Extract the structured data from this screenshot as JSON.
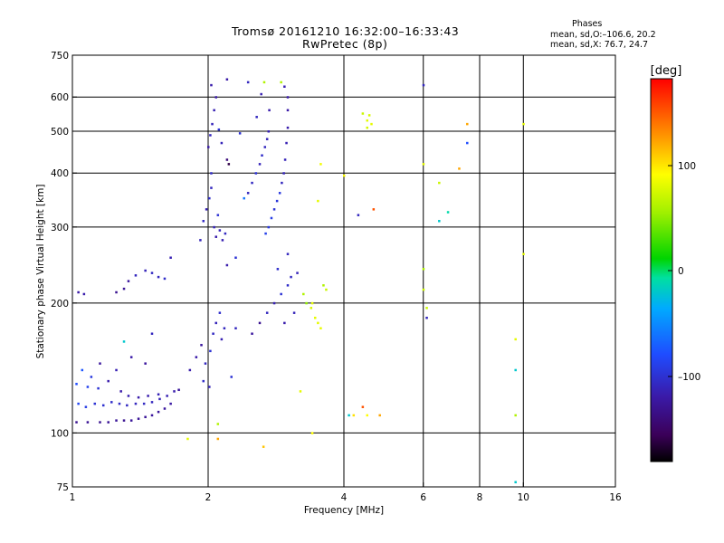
{
  "header": {
    "title_line1": "Tromsø 20161210 16:32:00–16:33:43",
    "title_line2": "RwPretec (8p)"
  },
  "phases": {
    "heading": "Phases",
    "line_o": "mean, sd,O:–106.6, 20.2",
    "line_x": "mean, sd,X: 76.7, 24.7"
  },
  "colorbar": {
    "unit": "[deg]",
    "ticks": [
      "100",
      "0",
      "–100"
    ]
  },
  "chart_data": {
    "type": "scatter",
    "xlabel": "Frequency [MHz]",
    "ylabel": "Stationary phase Virtual Height [km]",
    "x_scale": "log",
    "y_scale": "log",
    "xlim": [
      1,
      16
    ],
    "ylim": [
      75,
      750
    ],
    "x_tick_labels": [
      "1",
      "2",
      "4",
      "6",
      "8",
      "10",
      "16"
    ],
    "x_tick_values": [
      1,
      2,
      4,
      6,
      8,
      10,
      16
    ],
    "y_tick_labels": [
      "75",
      "100",
      "200",
      "300",
      "400",
      "500",
      "600",
      "750"
    ],
    "y_tick_values": [
      75,
      100,
      200,
      300,
      400,
      500,
      600,
      750
    ],
    "grid_x": [
      2,
      4,
      6,
      8,
      10
    ],
    "grid_y": [
      100,
      200,
      300,
      400,
      500,
      600
    ],
    "colorbar_range_deg": [
      -180,
      180
    ],
    "series": [
      {
        "points": [
          [
            1.02,
            106,
            -130
          ],
          [
            1.08,
            106,
            -128
          ],
          [
            1.15,
            106,
            -130
          ],
          [
            1.2,
            106,
            -128
          ],
          [
            1.25,
            107,
            -127
          ],
          [
            1.3,
            107,
            -130
          ],
          [
            1.35,
            107,
            -126
          ],
          [
            1.4,
            108,
            -128
          ],
          [
            1.45,
            109,
            -127
          ],
          [
            1.5,
            110,
            -125
          ],
          [
            1.55,
            112,
            -126
          ],
          [
            1.6,
            114,
            -124
          ],
          [
            1.65,
            117,
            -122
          ],
          [
            1.03,
            117,
            -85
          ],
          [
            1.07,
            115,
            -92
          ],
          [
            1.12,
            117,
            -100
          ],
          [
            1.17,
            116,
            -102
          ],
          [
            1.22,
            118,
            -105
          ],
          [
            1.27,
            117,
            -106
          ],
          [
            1.32,
            116,
            -108
          ],
          [
            1.38,
            117,
            -110
          ],
          [
            1.44,
            117,
            -108
          ],
          [
            1.5,
            118,
            -110
          ],
          [
            1.56,
            120,
            -112
          ],
          [
            1.62,
            122,
            -115
          ],
          [
            1.02,
            130,
            -80
          ],
          [
            1.05,
            140,
            -75
          ],
          [
            1.08,
            128,
            -88
          ],
          [
            1.1,
            135,
            -95
          ],
          [
            1.14,
            127,
            -100
          ],
          [
            1.2,
            132,
            -118
          ],
          [
            1.28,
            125,
            -120
          ],
          [
            1.33,
            122,
            -116
          ],
          [
            1.4,
            121,
            -119
          ],
          [
            1.47,
            122,
            -118
          ],
          [
            1.55,
            123,
            -114
          ],
          [
            1.68,
            125,
            -118
          ],
          [
            1.72,
            126,
            -126
          ],
          [
            1.03,
            212,
            -120
          ],
          [
            1.06,
            210,
            -118
          ],
          [
            1.25,
            212,
            -130
          ],
          [
            1.3,
            216,
            -128
          ],
          [
            1.33,
            225,
            -125
          ],
          [
            1.38,
            232,
            -110
          ],
          [
            1.45,
            238,
            -112
          ],
          [
            1.5,
            235,
            -108
          ],
          [
            1.55,
            230,
            -110
          ],
          [
            1.6,
            228,
            -105
          ],
          [
            1.65,
            255,
            -115
          ],
          [
            1.82,
            140,
            -118
          ],
          [
            1.88,
            150,
            -120
          ],
          [
            1.93,
            160,
            -125
          ],
          [
            1.97,
            145,
            -110
          ],
          [
            2.02,
            155,
            -100
          ],
          [
            2.05,
            170,
            -108
          ],
          [
            2.08,
            180,
            -112
          ],
          [
            2.12,
            190,
            -104
          ],
          [
            2.14,
            165,
            -115
          ],
          [
            2.17,
            175,
            -110
          ],
          [
            1.95,
            132,
            -106
          ],
          [
            2.01,
            128,
            -112
          ],
          [
            1.92,
            280,
            -112
          ],
          [
            1.95,
            310,
            -108
          ],
          [
            1.98,
            330,
            -115
          ],
          [
            2.01,
            350,
            -105
          ],
          [
            2.03,
            370,
            -110
          ],
          [
            2.06,
            300,
            -112
          ],
          [
            2.08,
            285,
            -118
          ],
          [
            2.1,
            320,
            -100
          ],
          [
            2.12,
            295,
            -112
          ],
          [
            2.15,
            280,
            -115
          ],
          [
            2.18,
            290,
            -108
          ],
          [
            2.03,
            400,
            -106
          ],
          [
            2.0,
            460,
            -120
          ],
          [
            2.02,
            490,
            -110
          ],
          [
            2.04,
            520,
            -112
          ],
          [
            2.06,
            560,
            -115
          ],
          [
            2.08,
            600,
            -120
          ],
          [
            2.03,
            640,
            -118
          ],
          [
            2.11,
            505,
            -100
          ],
          [
            2.14,
            470,
            -112
          ],
          [
            2.2,
            430,
            -140
          ],
          [
            2.22,
            420,
            -160
          ],
          [
            2.45,
            360,
            -110
          ],
          [
            2.5,
            380,
            -108
          ],
          [
            2.55,
            400,
            -100
          ],
          [
            2.6,
            420,
            -112
          ],
          [
            2.63,
            440,
            -105
          ],
          [
            2.67,
            460,
            -110
          ],
          [
            2.7,
            480,
            -112
          ],
          [
            2.72,
            500,
            -115
          ],
          [
            2.56,
            540,
            -110
          ],
          [
            2.62,
            610,
            -115
          ],
          [
            2.66,
            650,
            60
          ],
          [
            2.73,
            560,
            -118
          ],
          [
            2.68,
            290,
            -90
          ],
          [
            2.72,
            300,
            -95
          ],
          [
            2.76,
            315,
            -92
          ],
          [
            2.8,
            330,
            -100
          ],
          [
            2.84,
            345,
            -98
          ],
          [
            2.88,
            360,
            -95
          ],
          [
            2.91,
            380,
            -110
          ],
          [
            2.94,
            400,
            -112
          ],
          [
            2.96,
            430,
            -112
          ],
          [
            2.98,
            470,
            -115
          ],
          [
            3.0,
            510,
            -118
          ],
          [
            3.0,
            560,
            -120
          ],
          [
            3.0,
            600,
            -120
          ],
          [
            2.95,
            635,
            -115
          ],
          [
            2.9,
            650,
            60
          ],
          [
            2.5,
            170,
            -125
          ],
          [
            2.6,
            180,
            -130
          ],
          [
            2.7,
            190,
            -110
          ],
          [
            2.8,
            200,
            -115
          ],
          [
            2.9,
            210,
            -100
          ],
          [
            3.0,
            220,
            -105
          ],
          [
            3.05,
            230,
            -108
          ],
          [
            3.1,
            190,
            -112
          ],
          [
            2.95,
            180,
            -118
          ],
          [
            2.85,
            240,
            -104
          ],
          [
            3.0,
            260,
            -110
          ],
          [
            3.15,
            235,
            -112
          ],
          [
            3.25,
            210,
            60
          ],
          [
            3.3,
            200,
            50
          ],
          [
            3.38,
            195,
            75
          ],
          [
            3.45,
            185,
            80
          ],
          [
            3.5,
            180,
            80
          ],
          [
            3.55,
            175,
            82
          ],
          [
            3.6,
            220,
            60
          ],
          [
            3.65,
            215,
            70
          ],
          [
            3.4,
            200,
            80
          ],
          [
            3.5,
            345,
            80
          ],
          [
            3.55,
            420,
            85
          ],
          [
            4.5,
            530,
            80
          ],
          [
            4.55,
            545,
            75
          ],
          [
            4.6,
            520,
            80
          ],
          [
            4.5,
            510,
            75
          ],
          [
            4.4,
            550,
            70
          ],
          [
            4.0,
            395,
            90
          ],
          [
            4.3,
            320,
            -110
          ],
          [
            4.65,
            330,
            150
          ],
          [
            4.8,
            110,
            120
          ],
          [
            4.1,
            110,
            -20
          ],
          [
            4.2,
            110,
            100
          ],
          [
            4.4,
            115,
            150
          ],
          [
            4.5,
            110,
            90
          ],
          [
            6.0,
            640,
            -110
          ],
          [
            6.0,
            420,
            80
          ],
          [
            6.5,
            380,
            70
          ],
          [
            6.8,
            325,
            -10
          ],
          [
            6.5,
            310,
            -20
          ],
          [
            7.2,
            410,
            120
          ],
          [
            7.5,
            470,
            -80
          ],
          [
            7.5,
            520,
            120
          ],
          [
            6.0,
            240,
            60
          ],
          [
            6.0,
            215,
            70
          ],
          [
            6.1,
            195,
            70
          ],
          [
            6.1,
            185,
            -110
          ],
          [
            9.6,
            140,
            -20
          ],
          [
            9.6,
            165,
            80
          ],
          [
            9.6,
            110,
            60
          ],
          [
            9.6,
            77,
            -20
          ],
          [
            10.0,
            520,
            80
          ],
          [
            10.0,
            260,
            80
          ],
          [
            2.1,
            105,
            60
          ],
          [
            2.1,
            97,
            120
          ],
          [
            2.65,
            93,
            110
          ],
          [
            3.4,
            100,
            90
          ],
          [
            1.8,
            97,
            80
          ],
          [
            3.2,
            125,
            80
          ],
          [
            2.35,
            495,
            -100
          ],
          [
            2.4,
            350,
            -60
          ],
          [
            2.3,
            175,
            -110
          ],
          [
            2.25,
            135,
            -100
          ],
          [
            1.3,
            163,
            -20
          ],
          [
            1.5,
            170,
            -110
          ],
          [
            1.25,
            140,
            -115
          ],
          [
            1.35,
            150,
            -120
          ],
          [
            1.45,
            145,
            -125
          ],
          [
            2.2,
            660,
            -120
          ],
          [
            2.45,
            650,
            -110
          ],
          [
            1.15,
            145,
            -125
          ],
          [
            2.3,
            255,
            -100
          ],
          [
            2.2,
            245,
            -118
          ]
        ]
      }
    ]
  }
}
